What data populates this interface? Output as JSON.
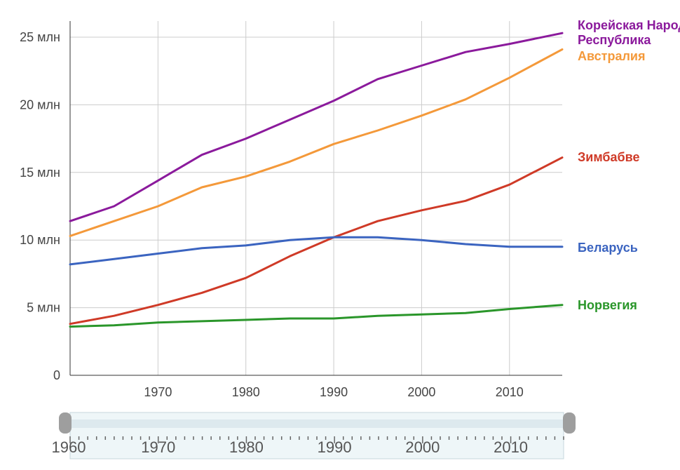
{
  "chart_data": {
    "type": "line",
    "x": [
      1960,
      1965,
      1970,
      1975,
      1980,
      1985,
      1990,
      1995,
      2000,
      2005,
      2010,
      2016
    ],
    "xlim": [
      1960,
      2016
    ],
    "ylim": [
      0,
      27
    ],
    "x_ticks": [
      {
        "value": 1970,
        "label": "1970"
      },
      {
        "value": 1980,
        "label": "1980"
      },
      {
        "value": 1990,
        "label": "1990"
      },
      {
        "value": 2000,
        "label": "2000"
      },
      {
        "value": 2010,
        "label": "2010"
      }
    ],
    "y_ticks": [
      {
        "value": 0,
        "label": "0"
      },
      {
        "value": 5,
        "label": "5 млн"
      },
      {
        "value": 10,
        "label": "10 млн"
      },
      {
        "value": 15,
        "label": "15 млн"
      },
      {
        "value": 20,
        "label": "20 млн"
      },
      {
        "value": 25,
        "label": "25 млн"
      }
    ],
    "grid": true,
    "legend": "right-end labels",
    "series": [
      {
        "name": "Корейская Народная Республика",
        "label_lines": [
          "Корейская Народная",
          "Республика"
        ],
        "color": "#8b1a9c",
        "values": [
          11.4,
          12.5,
          14.4,
          16.3,
          17.5,
          18.9,
          20.3,
          21.9,
          22.9,
          23.9,
          24.5,
          25.3
        ]
      },
      {
        "name": "Австралия",
        "label_lines": [
          "Австралия"
        ],
        "color": "#f4993a",
        "values": [
          10.3,
          11.4,
          12.5,
          13.9,
          14.7,
          15.8,
          17.1,
          18.1,
          19.2,
          20.4,
          22.0,
          24.1
        ]
      },
      {
        "name": "Зимбабве",
        "label_lines": [
          "Зимбабве"
        ],
        "color": "#cf3a27",
        "values": [
          3.8,
          4.4,
          5.2,
          6.1,
          7.2,
          8.8,
          10.2,
          11.4,
          12.2,
          12.9,
          14.1,
          16.1
        ]
      },
      {
        "name": "Беларусь",
        "label_lines": [
          "Беларусь"
        ],
        "color": "#3b64c0",
        "values": [
          8.2,
          8.6,
          9.0,
          9.4,
          9.6,
          10.0,
          10.2,
          10.2,
          10.0,
          9.7,
          9.5,
          9.5
        ]
      },
      {
        "name": "Норвегия",
        "label_lines": [
          "Норвегия"
        ],
        "color": "#2a962a",
        "values": [
          3.6,
          3.7,
          3.9,
          4.0,
          4.1,
          4.2,
          4.2,
          4.4,
          4.5,
          4.6,
          4.9,
          5.2
        ]
      }
    ]
  },
  "slider": {
    "start_label": "1960",
    "tick_labels": [
      "1970",
      "1980",
      "1990",
      "2000",
      "2010"
    ],
    "range": [
      1960,
      2016
    ]
  }
}
